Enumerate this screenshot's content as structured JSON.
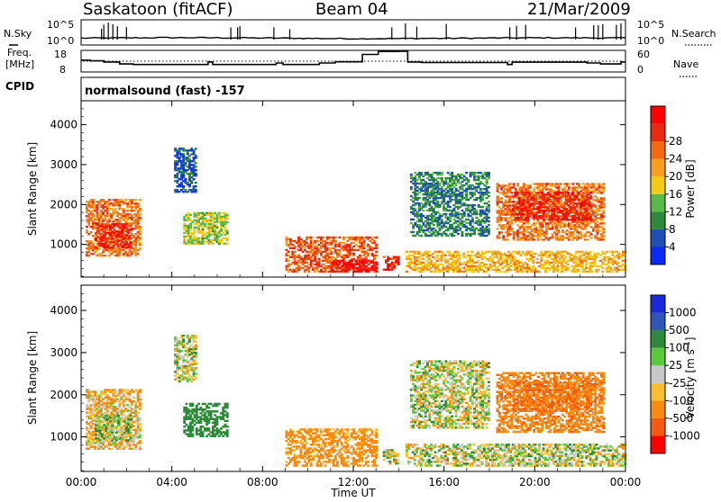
{
  "header": {
    "station": "Saskatoon (fitACF)",
    "beam": "Beam 04",
    "date": "21/Mar/2009",
    "cpid_label": "CPID",
    "cpid_value": "normalsound (fast) -157"
  },
  "noise_panel": {
    "left_label": "N.Sky",
    "right_label": "N.Search",
    "tick_high": "10^5",
    "tick_low": "10^0"
  },
  "freq_panel": {
    "left_label_line1": "Freq.",
    "left_label_line2": "[MHz]",
    "left_ticks": [
      "18",
      "8"
    ],
    "right_label": "Nave",
    "right_ticks": [
      "60",
      "0"
    ]
  },
  "x_axis": {
    "label": "Time UT",
    "ticks": [
      "00:00",
      "04:00",
      "08:00",
      "12:00",
      "16:00",
      "20:00",
      "00:00"
    ]
  },
  "colors": {
    "power": [
      "#0a2bf5",
      "#1f4fb3",
      "#2e8a3a",
      "#58b848",
      "#f2cc14",
      "#f7a020",
      "#f36a10",
      "#e82a10",
      "#ff0000"
    ],
    "velocity": [
      "#ff0000",
      "#f45a10",
      "#f78a10",
      "#f7c030",
      "#c8c8c8",
      "#5ac83a",
      "#2e8a3a",
      "#2e56b8",
      "#1a2ad8"
    ],
    "ground_scatter": "#c8c8c8"
  },
  "chart_data": [
    {
      "type": "line",
      "title": "N.Sky / N.Search",
      "x": [
        "00:00",
        "04:00",
        "08:00",
        "12:00",
        "16:00",
        "20:00",
        "00:00"
      ],
      "series": [
        {
          "name": "N.Sky",
          "values": [
            1.5,
            1.8,
            1.6,
            1.2,
            1.4,
            1.7,
            1.6
          ]
        }
      ],
      "ylim_labels": [
        "10^0",
        "10^5"
      ]
    },
    {
      "type": "line",
      "title": "Freq. / Nave",
      "x_hours": [
        0,
        0.4,
        1.0,
        1.7,
        2.3,
        5.6,
        5.8,
        8.6,
        8.9,
        10.5,
        11.2,
        12.4,
        13.1,
        13.4,
        14.0,
        14.4,
        15.0,
        18.8,
        19.0,
        22.3,
        22.9,
        23.8,
        24.0
      ],
      "series": [
        {
          "name": "Freq. (MHz)",
          "values": [
            13.5,
            13.2,
            12.6,
            11.6,
            11.3,
            12.6,
            11.3,
            12.1,
            11.3,
            12.1,
            12.7,
            16.4,
            17.9,
            17.9,
            18.0,
            12.6,
            12.3,
            11.3,
            12.5,
            12.1,
            11.6,
            12.6,
            12.6
          ]
        }
      ],
      "left_ticks": [
        "8",
        "18"
      ],
      "right_ticks": [
        "0",
        "60"
      ],
      "reference_line": "dotted (Nave)"
    },
    {
      "type": "heatmap",
      "title": "Power [dB]",
      "xlabel": "Time UT",
      "ylabel": "Slant Range [km]",
      "x_ticks": [
        "00:00",
        "04:00",
        "08:00",
        "12:00",
        "16:00",
        "20:00",
        "00:00"
      ],
      "y_ticks": [
        1000,
        2000,
        3000,
        4000
      ],
      "xlim_hours": [
        0,
        24
      ],
      "ylim_km": [
        180,
        4600
      ],
      "colorbar": {
        "label": "Power [dB]",
        "ticks": [
          4,
          8,
          12,
          16,
          20,
          24,
          28
        ]
      },
      "regions": [
        {
          "t": [
            0.2,
            2.6
          ],
          "r": [
            700,
            2100
          ],
          "power_db": 22
        },
        {
          "t": [
            0.6,
            2.2
          ],
          "r": [
            900,
            1500
          ],
          "power_db": 27
        },
        {
          "t": [
            4.1,
            5.0
          ],
          "r": [
            2300,
            3400
          ],
          "power_db": 5
        },
        {
          "t": [
            4.5,
            6.4
          ],
          "r": [
            1000,
            1800
          ],
          "power_db": 14
        },
        {
          "t": [
            9.0,
            13.0
          ],
          "r": [
            300,
            1200
          ],
          "power_db": 24
        },
        {
          "t": [
            11.0,
            13.0
          ],
          "r": [
            300,
            600
          ],
          "power_db": 29
        },
        {
          "t": [
            13.3,
            14.0
          ],
          "r": [
            350,
            700
          ],
          "power_db": 27
        },
        {
          "t": [
            14.3,
            24.0
          ],
          "r": [
            300,
            800
          ],
          "power_db": 18
        },
        {
          "t": [
            14.5,
            18.0
          ],
          "r": [
            1200,
            2800
          ],
          "power_db": 8
        },
        {
          "t": [
            18.3,
            23.0
          ],
          "r": [
            1100,
            2500
          ],
          "power_db": 22
        },
        {
          "t": [
            19.0,
            22.5
          ],
          "r": [
            1600,
            2300
          ],
          "power_db": 27
        }
      ]
    },
    {
      "type": "heatmap",
      "title": "Velocity [m s-1]",
      "xlabel": "Time UT",
      "ylabel": "Slant Range [km]",
      "x_ticks": [
        "00:00",
        "04:00",
        "08:00",
        "12:00",
        "16:00",
        "20:00",
        "00:00"
      ],
      "y_ticks": [
        1000,
        2000,
        3000,
        4000
      ],
      "xlim_hours": [
        0,
        24
      ],
      "ylim_km": [
        180,
        4600
      ],
      "colorbar": {
        "label": "Velocity [m s",
        "label_superscript": "-1",
        "label_close": "]",
        "ticks": [
          -1000,
          -500,
          -100,
          -25,
          25,
          100,
          500,
          1000
        ]
      },
      "regions": [
        {
          "t": [
            0.2,
            2.6
          ],
          "r": [
            700,
            2100
          ],
          "velocity": -100
        },
        {
          "t": [
            0.6,
            2.2
          ],
          "r": [
            900,
            1500
          ],
          "velocity": 50
        },
        {
          "t": [
            4.1,
            5.0
          ],
          "r": [
            2300,
            3400
          ],
          "velocity": 0
        },
        {
          "t": [
            4.5,
            6.4
          ],
          "r": [
            1000,
            1800
          ],
          "velocity": 300
        },
        {
          "t": [
            9.0,
            13.0
          ],
          "r": [
            300,
            1200
          ],
          "velocity": -200
        },
        {
          "t": [
            13.3,
            14.0
          ],
          "r": [
            350,
            700
          ],
          "velocity": 0
        },
        {
          "t": [
            14.3,
            24.0
          ],
          "r": [
            300,
            800
          ],
          "velocity": 0
        },
        {
          "t": [
            14.5,
            18.0
          ],
          "r": [
            1200,
            2800
          ],
          "velocity": 0
        },
        {
          "t": [
            18.3,
            23.0
          ],
          "r": [
            1100,
            2500
          ],
          "velocity": -400
        },
        {
          "t": [
            19.0,
            22.5
          ],
          "r": [
            1600,
            2300
          ],
          "velocity": -500
        }
      ]
    }
  ]
}
